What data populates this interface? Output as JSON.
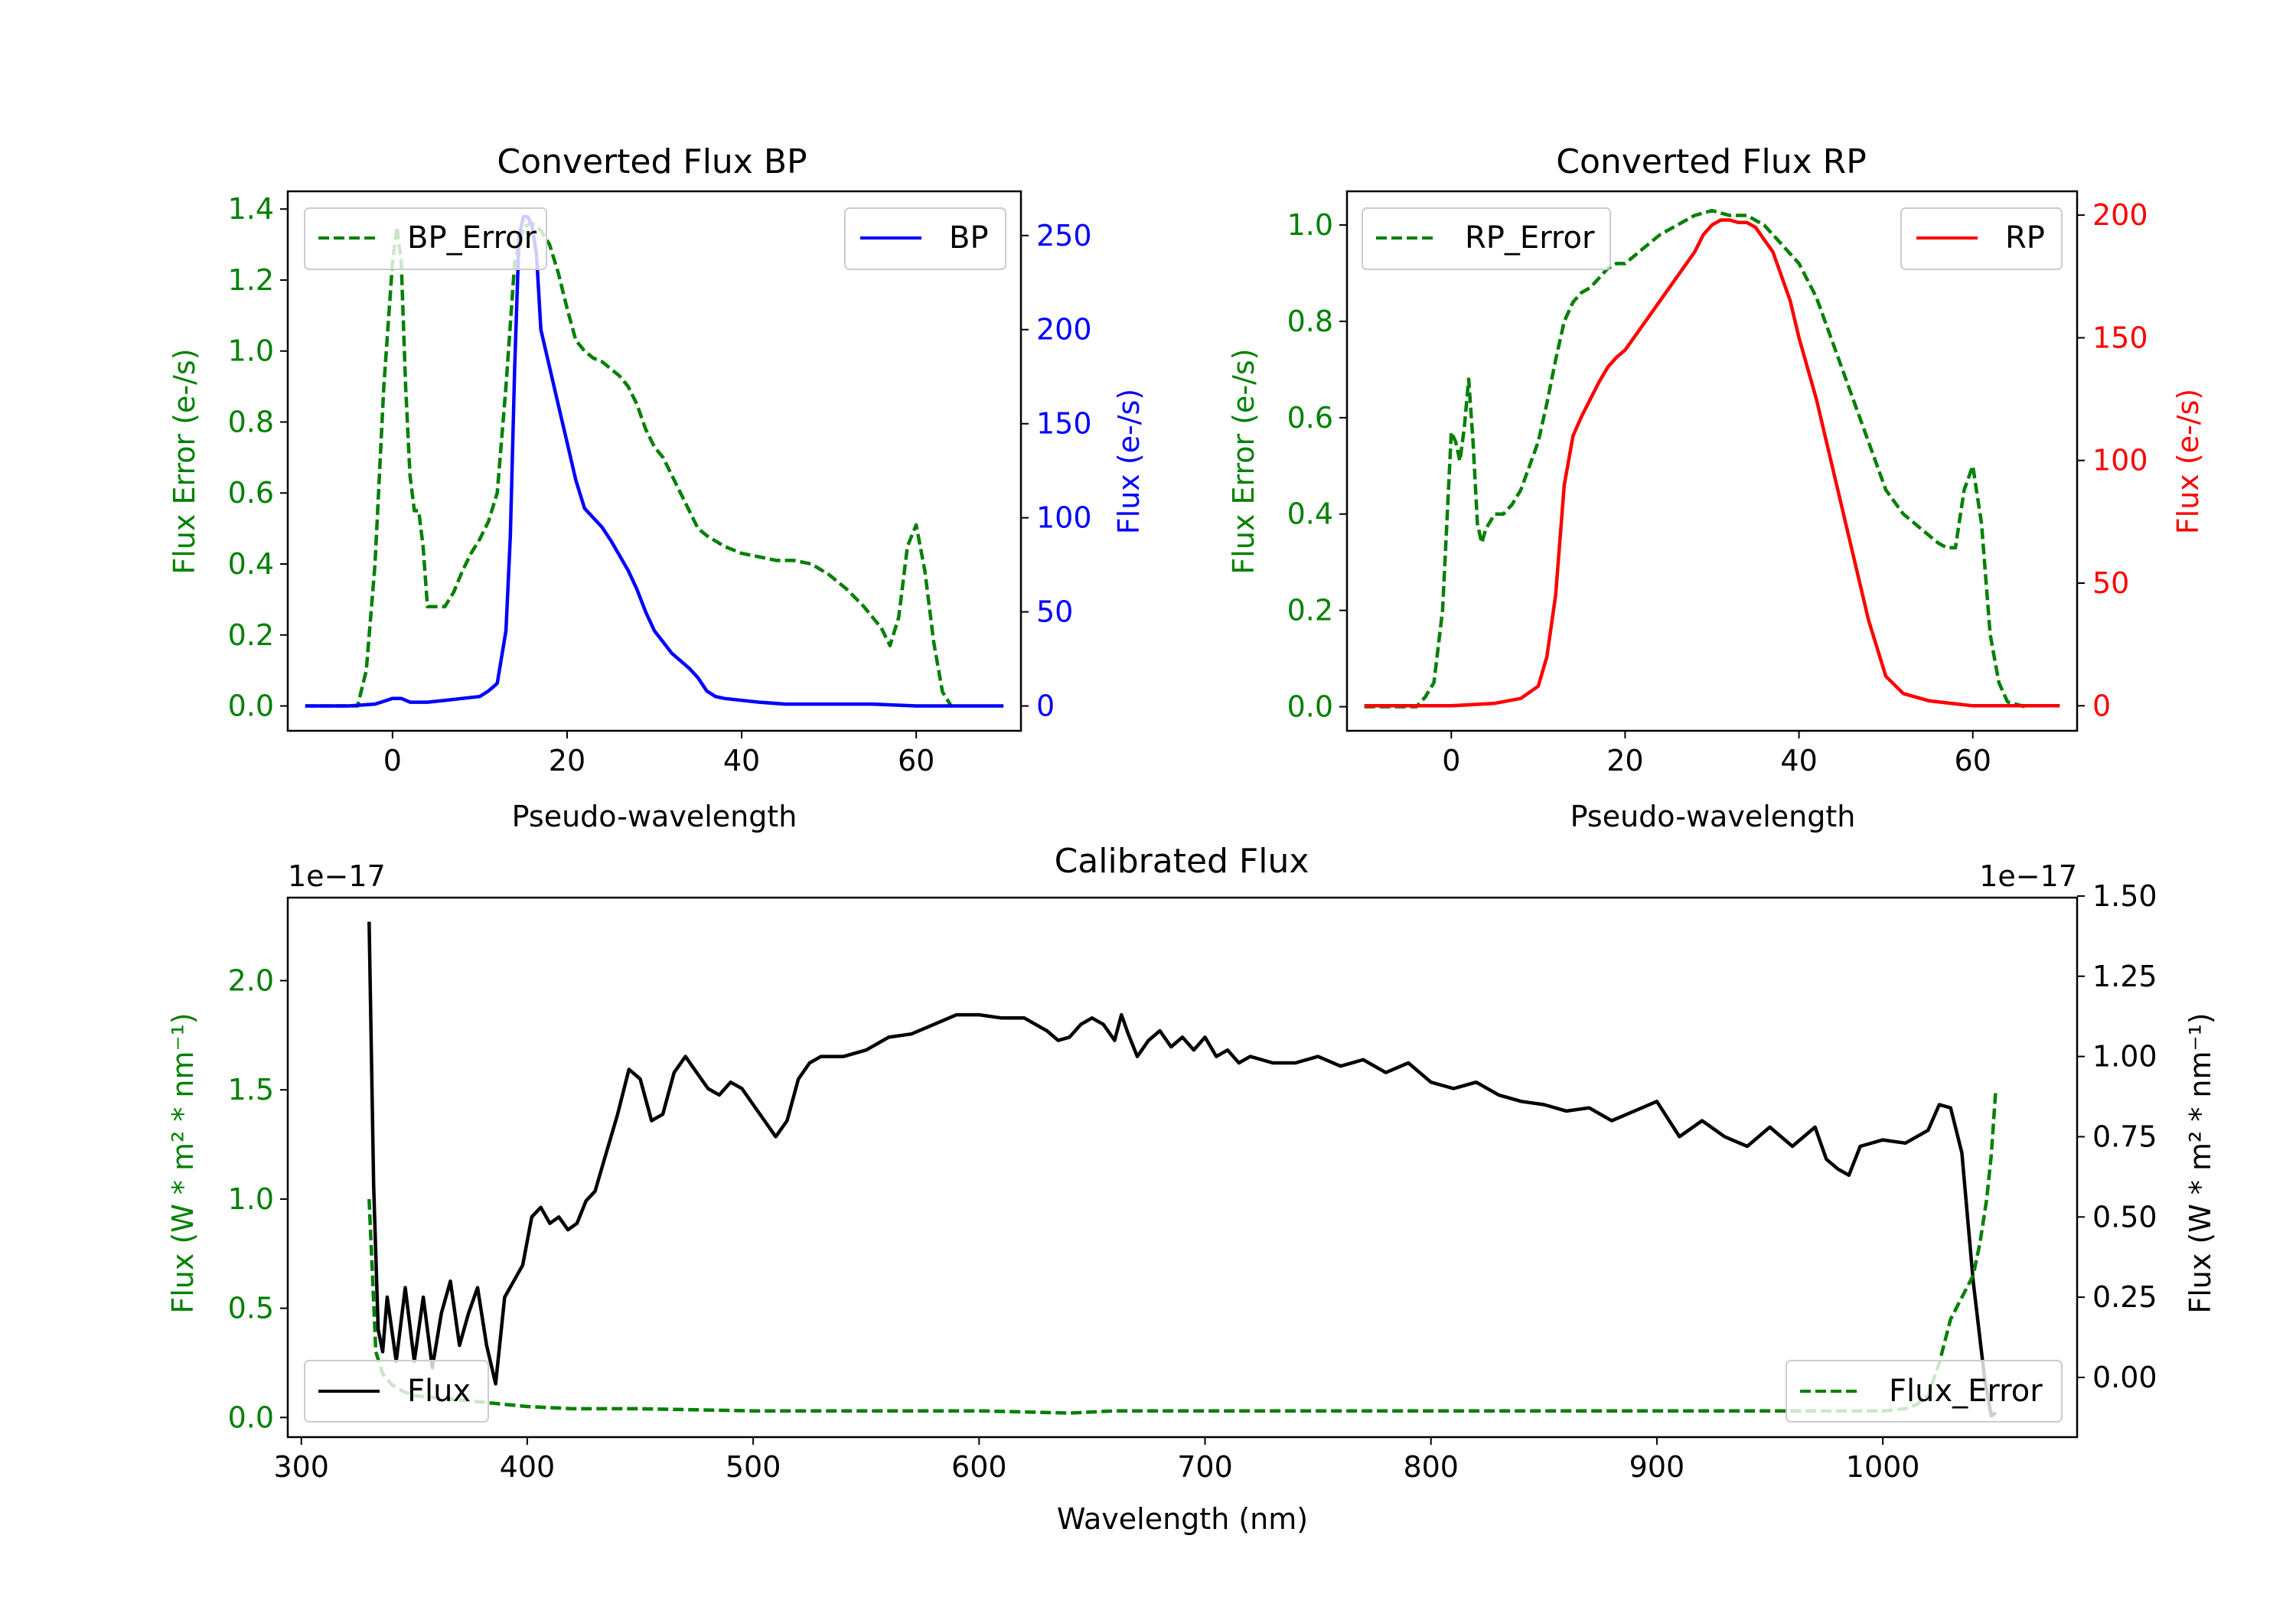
{
  "colors": {
    "bp": "#0000ff",
    "rp": "#ff0000",
    "err": "#008000",
    "flux": "#000000",
    "text": "#000000"
  },
  "chart_data": [
    {
      "type": "line",
      "title": "Converted Flux BP",
      "xlabel": "Pseudo-wavelength",
      "ylabel_left": "Flux Error (e-/s)",
      "ylabel_right": "Flux (e-/s)",
      "xlim": [
        -12,
        72
      ],
      "ylim_left": [
        -0.07,
        1.45
      ],
      "ylim_right": [
        -13.2,
        273.5
      ],
      "xticks": [
        0,
        20,
        40,
        60
      ],
      "yticks_left": [
        "0.0",
        "0.2",
        "0.4",
        "0.6",
        "0.8",
        "1.0",
        "1.2",
        "1.4"
      ],
      "yticks_right": [
        "0",
        "50",
        "100",
        "150",
        "200",
        "250"
      ],
      "series": [
        {
          "name": "BP_Error",
          "axis": "left",
          "style": "dashed",
          "color": "#008000",
          "x": [
            -10,
            -4,
            -3,
            -2,
            -1,
            0,
            0.5,
            1,
            1.5,
            2,
            2.5,
            3,
            3.5,
            4,
            5,
            6,
            7,
            8,
            9,
            10,
            11,
            12,
            13,
            14,
            15,
            16,
            17,
            18,
            19,
            20,
            21,
            22,
            23,
            24,
            25,
            26,
            27,
            28,
            29,
            30,
            31,
            32,
            33,
            34,
            35,
            36,
            38,
            40,
            42,
            44,
            46,
            48,
            50,
            52,
            54,
            56,
            57,
            58,
            59,
            60,
            61,
            62,
            63,
            64
          ],
          "y": [
            0.0,
            0.0,
            0.1,
            0.4,
            0.9,
            1.25,
            1.35,
            1.25,
            0.9,
            0.65,
            0.55,
            0.55,
            0.45,
            0.28,
            0.28,
            0.28,
            0.32,
            0.38,
            0.43,
            0.47,
            0.52,
            0.6,
            0.9,
            1.25,
            1.35,
            1.36,
            1.34,
            1.3,
            1.22,
            1.12,
            1.03,
            1.0,
            0.98,
            0.97,
            0.95,
            0.93,
            0.9,
            0.85,
            0.78,
            0.73,
            0.7,
            0.65,
            0.6,
            0.55,
            0.5,
            0.48,
            0.45,
            0.43,
            0.42,
            0.41,
            0.41,
            0.4,
            0.37,
            0.33,
            0.28,
            0.22,
            0.17,
            0.25,
            0.45,
            0.51,
            0.38,
            0.18,
            0.04,
            0.0
          ]
        },
        {
          "name": "BP",
          "axis": "right",
          "style": "solid",
          "color": "#0000ff",
          "x": [
            -10,
            -5,
            -2,
            0,
            1,
            2,
            4,
            6,
            8,
            10,
            11,
            12,
            13,
            13.5,
            14,
            14.5,
            15,
            15.5,
            16,
            16.5,
            17,
            18,
            19,
            20,
            21,
            22,
            23,
            24,
            25,
            26,
            27,
            28,
            29,
            30,
            31,
            32,
            33,
            34,
            35,
            36,
            37,
            38,
            40,
            42,
            45,
            50,
            55,
            60,
            65,
            70
          ],
          "y": [
            0,
            0,
            1,
            4,
            4,
            2,
            2,
            3,
            4,
            5,
            8,
            12,
            40,
            90,
            180,
            250,
            260,
            260,
            255,
            240,
            200,
            180,
            160,
            140,
            120,
            105,
            100,
            95,
            88,
            80,
            72,
            62,
            50,
            40,
            34,
            28,
            24,
            20,
            15,
            8,
            5,
            4,
            3,
            2,
            1,
            1,
            1,
            0,
            0,
            0
          ]
        }
      ],
      "legend": [
        {
          "label": "BP_Error",
          "position": "upper left"
        },
        {
          "label": "BP",
          "position": "upper right"
        }
      ]
    },
    {
      "type": "line",
      "title": "Converted Flux RP",
      "xlabel": "Pseudo-wavelength",
      "ylabel_left": "Flux Error (e-/s)",
      "ylabel_right": "Flux (e-/s)",
      "xlim": [
        -12,
        72
      ],
      "ylim_left": [
        -0.05,
        1.07
      ],
      "ylim_right": [
        -10.2,
        209.7
      ],
      "xticks": [
        0,
        20,
        40,
        60
      ],
      "yticks_left": [
        "0.0",
        "0.2",
        "0.4",
        "0.6",
        "0.8",
        "1.0"
      ],
      "yticks_right": [
        "0",
        "50",
        "100",
        "150",
        "200"
      ],
      "series": [
        {
          "name": "RP_Error",
          "axis": "left",
          "style": "dashed",
          "color": "#008000",
          "x": [
            -10,
            -4,
            -3,
            -2,
            -1,
            0,
            0.5,
            1,
            1.5,
            2,
            2.5,
            3,
            3.5,
            4,
            5,
            6,
            7,
            8,
            9,
            10,
            11,
            12,
            13,
            14,
            15,
            16,
            17,
            18,
            19,
            20,
            22,
            24,
            26,
            28,
            30,
            32,
            34,
            36,
            38,
            40,
            42,
            44,
            46,
            48,
            50,
            52,
            54,
            56,
            57,
            58,
            59,
            60,
            61,
            62,
            63,
            64,
            66
          ],
          "y": [
            0.0,
            0.0,
            0.02,
            0.05,
            0.2,
            0.57,
            0.55,
            0.51,
            0.58,
            0.68,
            0.55,
            0.38,
            0.34,
            0.37,
            0.4,
            0.4,
            0.42,
            0.45,
            0.5,
            0.55,
            0.63,
            0.72,
            0.8,
            0.84,
            0.86,
            0.87,
            0.89,
            0.91,
            0.92,
            0.92,
            0.95,
            0.98,
            1.0,
            1.02,
            1.03,
            1.02,
            1.02,
            1.0,
            0.96,
            0.92,
            0.85,
            0.75,
            0.65,
            0.55,
            0.45,
            0.4,
            0.37,
            0.34,
            0.33,
            0.33,
            0.45,
            0.5,
            0.38,
            0.15,
            0.05,
            0.01,
            0.0
          ]
        },
        {
          "name": "RP",
          "axis": "right",
          "style": "solid",
          "color": "#ff0000",
          "x": [
            -10,
            -5,
            0,
            5,
            8,
            10,
            11,
            12,
            13,
            14,
            15,
            16,
            17,
            18,
            19,
            20,
            22,
            24,
            26,
            28,
            29,
            30,
            31,
            32,
            33,
            34,
            35,
            36,
            37,
            38,
            39,
            40,
            42,
            44,
            46,
            48,
            50,
            52,
            55,
            60,
            65,
            70
          ],
          "y": [
            0,
            0,
            0,
            1,
            3,
            8,
            20,
            45,
            90,
            110,
            118,
            125,
            132,
            138,
            142,
            145,
            155,
            165,
            175,
            185,
            192,
            196,
            198,
            198,
            197,
            197,
            195,
            190,
            185,
            175,
            165,
            150,
            125,
            95,
            65,
            35,
            12,
            5,
            2,
            0,
            0,
            0
          ]
        }
      ],
      "legend": [
        {
          "label": "RP_Error",
          "position": "upper left"
        },
        {
          "label": "RP",
          "position": "upper right"
        }
      ]
    },
    {
      "type": "line",
      "title": "Calibrated Flux",
      "xlabel": "Wavelength (nm)",
      "ylabel_left": "Flux (W * m² * nm⁻¹)",
      "ylabel_right": "Flux (W * m² * nm⁻¹)",
      "offset_left": "1e−17",
      "offset_right": "1e−17",
      "xlim": [
        294,
        1086
      ],
      "ylim_left": [
        -0.09,
        2.38
      ],
      "ylim_right": [
        -0.186,
        1.495
      ],
      "xticks": [
        300,
        400,
        500,
        600,
        700,
        800,
        900,
        1000
      ],
      "yticks_left": [
        "0.0",
        "0.5",
        "1.0",
        "1.5",
        "2.0"
      ],
      "yticks_right": [
        "0.00",
        "0.25",
        "0.50",
        "0.75",
        "1.00",
        "1.25",
        "1.50"
      ],
      "series": [
        {
          "name": "Flux",
          "axis": "right",
          "style": "solid",
          "color": "#000000",
          "x": [
            330,
            332,
            334,
            336,
            338,
            342,
            346,
            350,
            354,
            358,
            362,
            366,
            370,
            374,
            378,
            382,
            386,
            390,
            394,
            398,
            402,
            406,
            410,
            414,
            418,
            422,
            426,
            430,
            435,
            440,
            445,
            450,
            455,
            460,
            465,
            470,
            475,
            480,
            485,
            490,
            495,
            500,
            505,
            510,
            515,
            520,
            525,
            530,
            540,
            550,
            560,
            570,
            580,
            590,
            600,
            610,
            620,
            625,
            630,
            635,
            640,
            645,
            650,
            655,
            660,
            663,
            666,
            670,
            675,
            680,
            685,
            690,
            695,
            700,
            705,
            710,
            715,
            720,
            730,
            740,
            750,
            760,
            770,
            780,
            790,
            800,
            810,
            820,
            830,
            840,
            850,
            860,
            870,
            880,
            890,
            900,
            910,
            920,
            930,
            940,
            950,
            960,
            970,
            975,
            980,
            985,
            990,
            1000,
            1010,
            1020,
            1025,
            1030,
            1035,
            1040,
            1045,
            1048,
            1050
          ],
          "y": [
            1.42,
            0.6,
            0.15,
            0.08,
            0.25,
            0.05,
            0.28,
            0.05,
            0.25,
            0.03,
            0.2,
            0.3,
            0.1,
            0.2,
            0.28,
            0.1,
            -0.02,
            0.25,
            0.3,
            0.35,
            0.5,
            0.53,
            0.48,
            0.5,
            0.46,
            0.48,
            0.55,
            0.58,
            0.7,
            0.82,
            0.96,
            0.93,
            0.8,
            0.82,
            0.95,
            1.0,
            0.95,
            0.9,
            0.88,
            0.92,
            0.9,
            0.85,
            0.8,
            0.75,
            0.8,
            0.93,
            0.98,
            1.0,
            1.0,
            1.02,
            1.06,
            1.07,
            1.1,
            1.13,
            1.13,
            1.12,
            1.12,
            1.1,
            1.08,
            1.05,
            1.06,
            1.1,
            1.12,
            1.1,
            1.05,
            1.13,
            1.07,
            1.0,
            1.05,
            1.08,
            1.03,
            1.06,
            1.02,
            1.06,
            1.0,
            1.02,
            0.98,
            1.0,
            0.98,
            0.98,
            1.0,
            0.97,
            0.99,
            0.95,
            0.98,
            0.92,
            0.9,
            0.92,
            0.88,
            0.86,
            0.85,
            0.83,
            0.84,
            0.8,
            0.83,
            0.86,
            0.75,
            0.8,
            0.75,
            0.72,
            0.78,
            0.72,
            0.78,
            0.68,
            0.65,
            0.63,
            0.72,
            0.74,
            0.73,
            0.77,
            0.85,
            0.84,
            0.7,
            0.3,
            0.0,
            -0.12,
            -0.11
          ]
        },
        {
          "name": "Flux_Error",
          "axis": "left",
          "style": "dashed",
          "color": "#008000",
          "x": [
            330,
            333,
            336,
            340,
            345,
            350,
            360,
            370,
            380,
            390,
            400,
            420,
            450,
            500,
            550,
            600,
            640,
            660,
            700,
            750,
            800,
            850,
            900,
            950,
            1000,
            1010,
            1015,
            1020,
            1025,
            1030,
            1035,
            1040,
            1043,
            1046,
            1048,
            1050
          ],
          "y": [
            1.0,
            0.3,
            0.2,
            0.15,
            0.12,
            0.1,
            0.09,
            0.08,
            0.07,
            0.06,
            0.05,
            0.04,
            0.04,
            0.03,
            0.03,
            0.03,
            0.02,
            0.03,
            0.03,
            0.03,
            0.03,
            0.03,
            0.03,
            0.03,
            0.03,
            0.04,
            0.06,
            0.1,
            0.25,
            0.45,
            0.55,
            0.65,
            0.8,
            1.0,
            1.2,
            1.5
          ]
        }
      ],
      "legend": [
        {
          "label": "Flux",
          "position": "lower left"
        },
        {
          "label": "Flux_Error",
          "position": "lower right"
        }
      ]
    }
  ]
}
